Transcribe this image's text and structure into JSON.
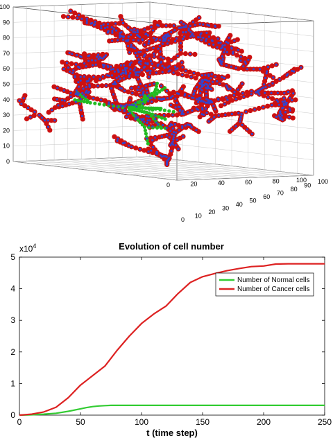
{
  "chart_data": [
    {
      "type": "scatter",
      "subtype": "3d-scatter",
      "description_of_marks": "branching tree structures of cells in a 3D grid",
      "axes": {
        "x_ticks": [
          "0",
          "10",
          "20",
          "30",
          "40",
          "50",
          "60",
          "70",
          "80",
          "90",
          "100"
        ],
        "y_ticks": [
          "0",
          "20",
          "40",
          "60",
          "80",
          "100"
        ],
        "z_ticks": [
          "0",
          "10",
          "20",
          "30",
          "40",
          "50",
          "60",
          "70",
          "80",
          "90",
          "100"
        ],
        "xlim": [
          0,
          100
        ],
        "ylim": [
          0,
          100
        ],
        "zlim": [
          0,
          100
        ]
      },
      "colors": {
        "cancer": "#cc1111",
        "endothelial": "#3344cc",
        "normal": "#22bb22"
      },
      "grid": true
    },
    {
      "type": "line",
      "title": "Evolution of cell number",
      "xlabel": "t (time step)",
      "ylabel": "",
      "y_scale_label": "x10",
      "y_scale_exponent": "4",
      "xlim": [
        0,
        250
      ],
      "ylim": [
        0,
        5
      ],
      "x_ticks": [
        0,
        50,
        100,
        150,
        200,
        250
      ],
      "y_ticks": [
        0,
        1,
        2,
        3,
        4,
        5
      ],
      "legend_placement": "upper-right",
      "grid": false,
      "series": [
        {
          "name": "Number of Normal cells",
          "color": "#33cc33",
          "x": [
            0,
            10,
            20,
            30,
            40,
            50,
            55,
            60,
            65,
            70,
            75,
            80,
            90,
            100,
            150,
            200,
            250
          ],
          "y": [
            0.0,
            0.01,
            0.03,
            0.06,
            0.12,
            0.2,
            0.24,
            0.27,
            0.29,
            0.3,
            0.31,
            0.31,
            0.31,
            0.31,
            0.31,
            0.31,
            0.31
          ]
        },
        {
          "name": "Number of Cancer cells",
          "color": "#dd2222",
          "x": [
            0,
            10,
            20,
            30,
            40,
            50,
            60,
            70,
            80,
            90,
            100,
            110,
            120,
            130,
            140,
            150,
            160,
            170,
            180,
            190,
            200,
            210,
            220,
            230,
            240,
            250
          ],
          "y": [
            0.0,
            0.03,
            0.1,
            0.25,
            0.55,
            0.95,
            1.25,
            1.55,
            2.05,
            2.5,
            2.9,
            3.2,
            3.45,
            3.85,
            4.2,
            4.38,
            4.48,
            4.57,
            4.64,
            4.7,
            4.72,
            4.78,
            4.79,
            4.79,
            4.79,
            4.79
          ]
        }
      ]
    }
  ]
}
